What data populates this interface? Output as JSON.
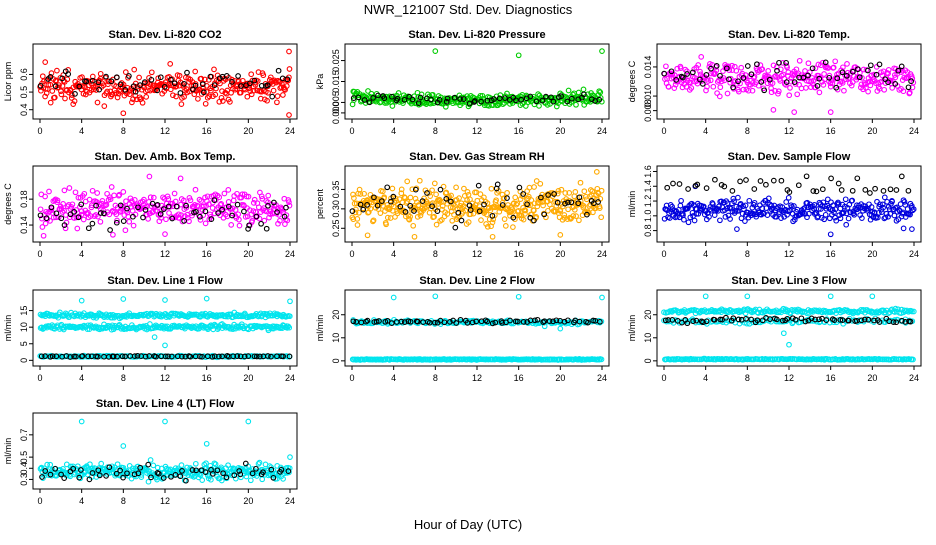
{
  "page": {
    "title": "NWR_121007  Std. Dev. Diagnostics",
    "xlabel": "Hour of Day (UTC)"
  },
  "chart_data": [
    {
      "type": "scatter",
      "title": "Stan. Dev. Li-820 CO2",
      "ylabel": "Licor ppm",
      "xlim": [
        0,
        24
      ],
      "xticks": [
        "0",
        "4",
        "8",
        "12",
        "16",
        "20",
        "24"
      ],
      "ylim": [
        0.37,
        0.75
      ],
      "yticks": [
        "0.4",
        "0.5",
        "0.6"
      ],
      "series": [
        {
          "name": "samples",
          "color": "#ff0000",
          "center": 0.53,
          "spread": 0.04,
          "count": 330,
          "outliers": [
            [
              23.9,
              0.73
            ],
            [
              23.9,
              0.37
            ],
            [
              8.0,
              0.38
            ],
            [
              0.5,
              0.67
            ],
            [
              12.5,
              0.66
            ]
          ]
        },
        {
          "name": "references",
          "color": "#000000",
          "center": 0.55,
          "spread": 0.035,
          "count": 55,
          "outliers": []
        }
      ]
    },
    {
      "type": "scatter",
      "title": "Stan. Dev. Li-820 Pressure",
      "ylabel": "kPa",
      "xlim": [
        0,
        24
      ],
      "xticks": [
        "0",
        "4",
        "8",
        "12",
        "16",
        "20",
        "24"
      ],
      "ylim": [
        -0.001,
        0.031
      ],
      "yticks": [
        "0.000",
        "0.005",
        "0.015",
        "0.025"
      ],
      "series": [
        {
          "name": "samples",
          "color": "#00cc00",
          "center": 0.0065,
          "spread": 0.0015,
          "count": 330,
          "curve": "smile",
          "outliers": [
            [
              8.0,
              0.0295
            ],
            [
              24.0,
              0.0295
            ],
            [
              16.0,
              0.0275
            ]
          ]
        },
        {
          "name": "references",
          "color": "#000000",
          "center": 0.0065,
          "spread": 0.0012,
          "count": 55,
          "curve": "smile",
          "outliers": []
        }
      ]
    },
    {
      "type": "scatter",
      "title": "Stan. Dev. Li-820 Temp.",
      "ylabel": "degrees C",
      "xlim": [
        0,
        24
      ],
      "xticks": [
        "0",
        "4",
        "8",
        "12",
        "16",
        "20",
        "24"
      ],
      "ylim": [
        0.0074,
        0.0166
      ],
      "yticks": [
        "0.008",
        "0.010",
        "0.014"
      ],
      "series": [
        {
          "name": "samples",
          "color": "#ff00ff",
          "center": 0.0126,
          "spread": 0.0011,
          "count": 330,
          "outliers": [
            [
              12.5,
              0.0078
            ],
            [
              10.5,
              0.0081
            ],
            [
              16.0,
              0.0078
            ]
          ]
        },
        {
          "name": "references",
          "color": "#000000",
          "center": 0.013,
          "spread": 0.0009,
          "count": 55,
          "outliers": []
        }
      ]
    },
    {
      "type": "scatter",
      "title": "Stan. Dev. Amb. Box Temp.",
      "ylabel": "degrees C",
      "xlim": [
        0,
        24
      ],
      "xticks": [
        "0",
        "4",
        "8",
        "12",
        "16",
        "20",
        "24"
      ],
      "ylim": [
        0.12,
        0.225
      ],
      "yticks": [
        "0.14",
        "0.18"
      ],
      "series": [
        {
          "name": "samples",
          "color": "#ff00ff",
          "center": 0.165,
          "spread": 0.013,
          "count": 330,
          "outliers": [
            [
              10.5,
              0.215
            ],
            [
              13.5,
              0.212
            ],
            [
              7.0,
              0.125
            ],
            [
              12.0,
              0.126
            ]
          ]
        },
        {
          "name": "references",
          "color": "#000000",
          "center": 0.156,
          "spread": 0.012,
          "count": 55,
          "outliers": []
        }
      ]
    },
    {
      "type": "scatter",
      "title": "Stan. Dev. Gas Stream RH",
      "ylabel": "percent",
      "xlim": [
        0,
        24
      ],
      "xticks": [
        "0",
        "4",
        "8",
        "12",
        "16",
        "20",
        "24"
      ],
      "ylim": [
        0.225,
        0.4
      ],
      "yticks": [
        "0.25",
        "0.30",
        "0.35"
      ],
      "series": [
        {
          "name": "samples",
          "color": "#ffaa00",
          "center": 0.31,
          "spread": 0.025,
          "count": 420,
          "outliers": [
            [
              23.5,
              0.395
            ],
            [
              1.5,
              0.232
            ],
            [
              6.0,
              0.228
            ],
            [
              13.5,
              0.228
            ],
            [
              20.0,
              0.233
            ]
          ]
        },
        {
          "name": "references",
          "color": "#000000",
          "center": 0.31,
          "spread": 0.025,
          "count": 55,
          "outliers": []
        }
      ]
    },
    {
      "type": "scatter",
      "title": "Stan. Dev. Sample Flow",
      "ylabel": "ml/min",
      "xlim": [
        0,
        24
      ],
      "xticks": [
        "0",
        "4",
        "8",
        "12",
        "16",
        "20",
        "24"
      ],
      "ylim": [
        0.7,
        1.62
      ],
      "yticks": [
        "0.8",
        "1.0",
        "1.2",
        "1.4",
        "1.6"
      ],
      "series": [
        {
          "name": "samples",
          "color": "#0000dd",
          "center": 1.08,
          "spread": 0.07,
          "count": 330,
          "outliers": [
            [
              7.0,
              0.82
            ],
            [
              16.0,
              0.75
            ],
            [
              23.0,
              0.83
            ],
            [
              23.8,
              0.82
            ],
            [
              3.0,
              1.4
            ]
          ]
        },
        {
          "name": "references",
          "color": "#000000",
          "center": 1.4,
          "spread": 0.06,
          "count": 38,
          "outliers": []
        }
      ]
    },
    {
      "type": "scatter",
      "title": "Stan. Dev. Line 1 Flow",
      "ylabel": "ml/min",
      "xlim": [
        0,
        24
      ],
      "xticks": [
        "0",
        "4",
        "8",
        "12",
        "16",
        "20",
        "24"
      ],
      "ylim": [
        -0.5,
        20
      ],
      "yticks": [
        "0",
        "5",
        "10",
        "15"
      ],
      "series": [
        {
          "name": "band-upper",
          "color": "#00e5ee",
          "center": 13.5,
          "spread": 0.35,
          "count": 240,
          "outliers": [
            [
              4.0,
              18.0
            ],
            [
              8.0,
              18.5
            ],
            [
              12.0,
              18.2
            ],
            [
              16.0,
              18.6
            ],
            [
              24.0,
              17.8
            ],
            [
              11.0,
              7.0
            ],
            [
              12.0,
              4.5
            ]
          ]
        },
        {
          "name": "band-lower",
          "color": "#00e5ee",
          "center": 10.0,
          "spread": 0.35,
          "count": 240,
          "outliers": []
        },
        {
          "name": "base",
          "color": "#00e5ee",
          "center": 1.2,
          "spread": 0.1,
          "count": 180,
          "outliers": []
        },
        {
          "name": "references",
          "color": "#000000",
          "center": 1.2,
          "spread": 0.08,
          "count": 65,
          "outliers": []
        }
      ]
    },
    {
      "type": "scatter",
      "title": "Stan. Dev. Line 2 Flow",
      "ylabel": "ml/min",
      "xlim": [
        0,
        24
      ],
      "xticks": [
        "0",
        "4",
        "8",
        "12",
        "16",
        "20",
        "24"
      ],
      "ylim": [
        -0.5,
        29
      ],
      "yticks": [
        "0",
        "10",
        "20"
      ],
      "series": [
        {
          "name": "upper",
          "color": "#00e5ee",
          "center": 16.8,
          "spread": 0.4,
          "count": 180,
          "outliers": [
            [
              4.0,
              27.5
            ],
            [
              8.0,
              28.0
            ],
            [
              16.0,
              27.8
            ],
            [
              24.0,
              27.5
            ],
            [
              18.5,
              15.0
            ],
            [
              20.0,
              14.0
            ]
          ]
        },
        {
          "name": "base",
          "color": "#00e5ee",
          "center": 0.6,
          "spread": 0.1,
          "count": 240,
          "outliers": []
        },
        {
          "name": "references",
          "color": "#000000",
          "center": 17.0,
          "spread": 0.35,
          "count": 65,
          "outliers": []
        }
      ]
    },
    {
      "type": "scatter",
      "title": "Stan. Dev. Line 3 Flow",
      "ylabel": "ml/min",
      "xlim": [
        0,
        24
      ],
      "xticks": [
        "0",
        "4",
        "8",
        "12",
        "16",
        "20",
        "24"
      ],
      "ylim": [
        -0.5,
        29
      ],
      "yticks": [
        "0",
        "10",
        "20"
      ],
      "series": [
        {
          "name": "upper",
          "color": "#00e5ee",
          "center": 21.5,
          "spread": 0.45,
          "count": 200,
          "outliers": [
            [
              4.0,
              28.0
            ],
            [
              8.0,
              28.0
            ],
            [
              16.0,
              28.0
            ],
            [
              20.0,
              28.0
            ],
            [
              12.0,
              7.0
            ],
            [
              11.5,
              12.0
            ]
          ]
        },
        {
          "name": "middle",
          "color": "#00e5ee",
          "center": 17.2,
          "spread": 0.5,
          "count": 120,
          "outliers": []
        },
        {
          "name": "base",
          "color": "#00e5ee",
          "center": 0.7,
          "spread": 0.1,
          "count": 200,
          "outliers": []
        },
        {
          "name": "references",
          "color": "#000000",
          "center": 17.5,
          "spread": 0.5,
          "count": 65,
          "curve": "hump",
          "outliers": []
        }
      ]
    },
    {
      "type": "scatter",
      "title": "Stan. Dev. Line 4 (LT) Flow",
      "ylabel": "ml/min",
      "xlim": [
        0,
        24
      ],
      "xticks": [
        "0",
        "4",
        "8",
        "12",
        "16",
        "20",
        "24"
      ],
      "ylim": [
        0.25,
        0.86
      ],
      "yticks": [
        "0.3",
        "0.4",
        "0.5",
        "0.7"
      ],
      "series": [
        {
          "name": "samples",
          "color": "#00e5ee",
          "center": 0.37,
          "spread": 0.035,
          "count": 330,
          "outliers": [
            [
              4.0,
              0.82
            ],
            [
              12.0,
              0.82
            ],
            [
              20.0,
              0.82
            ],
            [
              8.0,
              0.6
            ],
            [
              16.0,
              0.62
            ],
            [
              24.0,
              0.5
            ]
          ]
        },
        {
          "name": "references",
          "color": "#000000",
          "center": 0.36,
          "spread": 0.03,
          "count": 55,
          "outliers": []
        }
      ]
    }
  ]
}
